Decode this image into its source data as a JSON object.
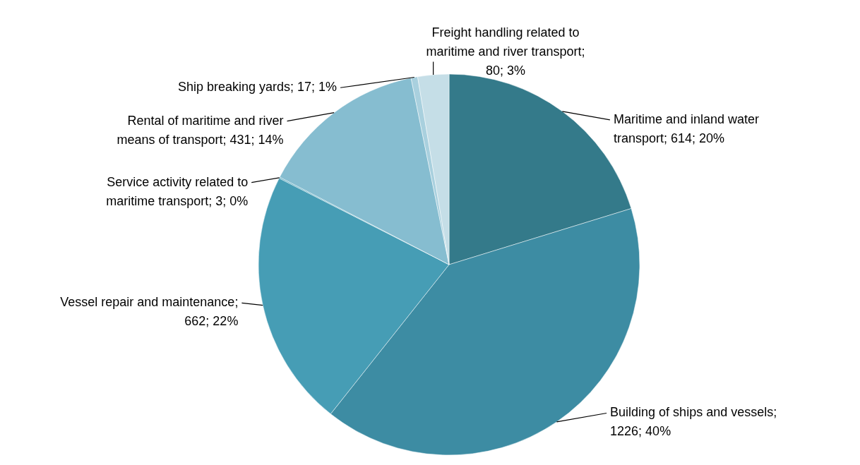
{
  "chart_data": {
    "type": "pie",
    "categories": [
      "Maritime and inland water transport",
      "Building of ships and vessels",
      "Vessel repair and maintenance",
      "Service activity related to maritime transport",
      "Rental of maritime and river means of transport",
      "Ship breaking yards",
      "Freight handling related to maritime and river transport"
    ],
    "values": [
      614,
      1226,
      662,
      3,
      431,
      17,
      80
    ],
    "value_labels": [
      "; 614; 20%",
      "; 1226; 40%",
      "; 662; 22%",
      "; 3; 0%",
      "; 431; 14%",
      "; 17; 1%",
      "; 80; 3%"
    ],
    "colors": [
      "#347a8a",
      "#3d8ca3",
      "#469db5",
      "#5aaac0",
      "#86bdd0",
      "#a9d0de",
      "#c5dee7"
    ]
  }
}
